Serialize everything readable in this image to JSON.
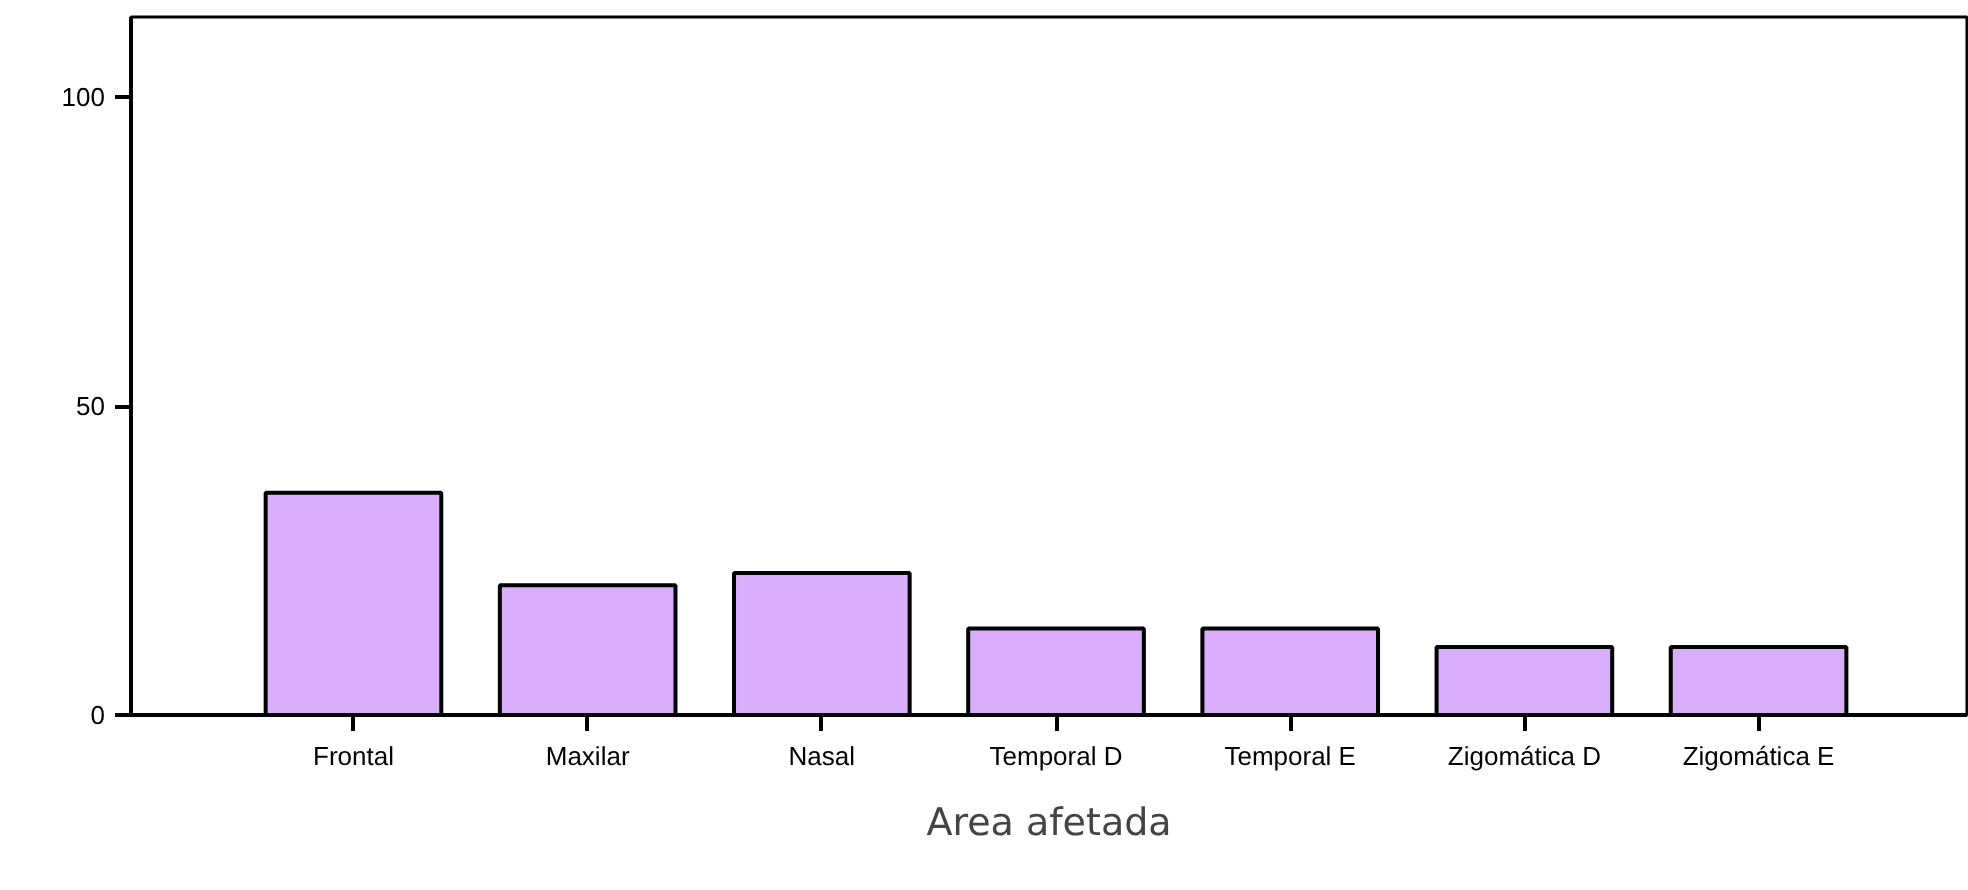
{
  "chart_data": {
    "type": "bar",
    "xlabel": "Area afetada",
    "categories": [
      "Frontal",
      "Maxilar",
      "Nasal",
      "Temporal D",
      "Temporal E",
      "Zigomática D",
      "Zigomática E"
    ],
    "values": [
      36,
      21,
      23,
      14,
      14,
      11,
      11
    ],
    "color": "#d8aefc",
    "ylim": [
      0,
      113
    ],
    "yticks": [
      0,
      50,
      100
    ],
    "grid": false
  }
}
